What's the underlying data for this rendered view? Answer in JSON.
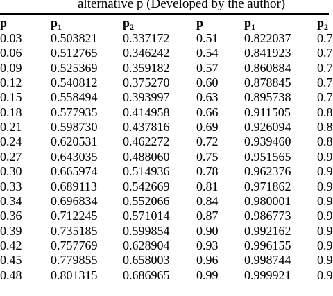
{
  "caption": "alternative p (Developed by the author)",
  "headers": {
    "p": "p",
    "p1_base": "p",
    "p1_sub": "1",
    "p2_base": "p",
    "p2_sub": "2",
    "p_right": "p",
    "p1_right_base": "p",
    "p1_right_sub": "1",
    "p2_right_base": "p",
    "p2_right_sub": "2"
  },
  "rows": [
    {
      "p": "0.03",
      "p1": "0.503821",
      "p2": "0.337172",
      "pr": "0.51",
      "p1r": "0.822037",
      "p2r": "0.7"
    },
    {
      "p": "0.06",
      "p1": "0.512765",
      "p2": "0.346242",
      "pr": "0.54",
      "p1r": "0.841923",
      "p2r": "0.7"
    },
    {
      "p": "0.09",
      "p1": "0.525369",
      "p2": "0.359182",
      "pr": "0.57",
      "p1r": "0.860884",
      "p2r": "0.7"
    },
    {
      "p": "0.12",
      "p1": "0.540812",
      "p2": "0.375270",
      "pr": "0.60",
      "p1r": "0.878845",
      "p2r": "0.7"
    },
    {
      "p": "0.15",
      "p1": "0.558494",
      "p2": "0.393997",
      "pr": "0.63",
      "p1r": "0.895738",
      "p2r": "0.7"
    },
    {
      "p": "0.18",
      "p1": "0.577935",
      "p2": "0.414958",
      "pr": "0.66",
      "p1r": "0.911505",
      "p2r": "0.8"
    },
    {
      "p": "0.21",
      "p1": "0.598730",
      "p2": "0.437816",
      "pr": "0.69",
      "p1r": "0.926094",
      "p2r": "0.8"
    },
    {
      "p": "0.24",
      "p1": "0.620531",
      "p2": "0.462272",
      "pr": "0.72",
      "p1r": "0.939460",
      "p2r": "0.8"
    },
    {
      "p": "0.27",
      "p1": "0.643035",
      "p2": "0.488060",
      "pr": "0.75",
      "p1r": "0.951565",
      "p2r": "0.9"
    },
    {
      "p": "0.30",
      "p1": "0.665974",
      "p2": "0.514936",
      "pr": "0.78",
      "p1r": "0.962376",
      "p2r": "0.9"
    },
    {
      "p": "0.33",
      "p1": "0.689113",
      "p2": "0.542669",
      "pr": "0.81",
      "p1r": "0.971862",
      "p2r": "0.9"
    },
    {
      "p": "0.34",
      "p1": "0.696834",
      "p2": "0.552066",
      "pr": "0.84",
      "p1r": "0.980001",
      "p2r": "0.9"
    },
    {
      "p": "0.36",
      "p1": "0.712245",
      "p2": "0.571014",
      "pr": "0.87",
      "p1r": "0.986773",
      "p2r": "0.9"
    },
    {
      "p": "0.39",
      "p1": "0.735185",
      "p2": "0.599854",
      "pr": "0.90",
      "p1r": "0.992162",
      "p2r": "0.9"
    },
    {
      "p": "0.42",
      "p1": "0.757769",
      "p2": "0.628904",
      "pr": "0.93",
      "p1r": "0.996155",
      "p2r": "0.9"
    },
    {
      "p": "0.45",
      "p1": "0.779855",
      "p2": "0.658003",
      "pr": "0.96",
      "p1r": "0.998744",
      "p2r": "0.9"
    },
    {
      "p": "0.48",
      "p1": "0.801315",
      "p2": "0.686965",
      "pr": "0.99",
      "p1r": "0.999921",
      "p2r": "0.9"
    }
  ]
}
